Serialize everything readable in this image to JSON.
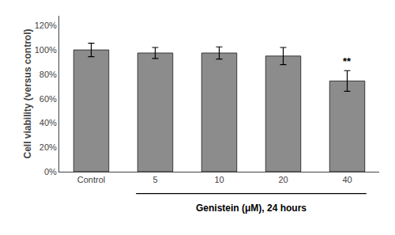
{
  "chart_data": {
    "type": "bar",
    "categories": [
      "Control",
      "5",
      "10",
      "20",
      "40"
    ],
    "values": [
      100,
      97.5,
      97.5,
      95,
      74.5
    ],
    "errors": [
      5.5,
      4.5,
      5.0,
      7.0,
      8.5
    ],
    "color": "#8c8c8c",
    "ylabel": "Cell viability (versus control)",
    "xlabel": "Genistein (μM), 24 hours",
    "ylim": [
      0,
      128
    ],
    "yticks": [
      {
        "value": 0,
        "label": "0%"
      },
      {
        "value": 20,
        "label": "20%"
      },
      {
        "value": 40,
        "label": "40%"
      },
      {
        "value": 60,
        "label": "60%"
      },
      {
        "value": 80,
        "label": "80%"
      },
      {
        "value": 100,
        "label": "100%"
      },
      {
        "value": 120,
        "label": "120%"
      }
    ],
    "grid": false,
    "annotations": [
      {
        "text": "**",
        "category": "40"
      }
    ]
  }
}
